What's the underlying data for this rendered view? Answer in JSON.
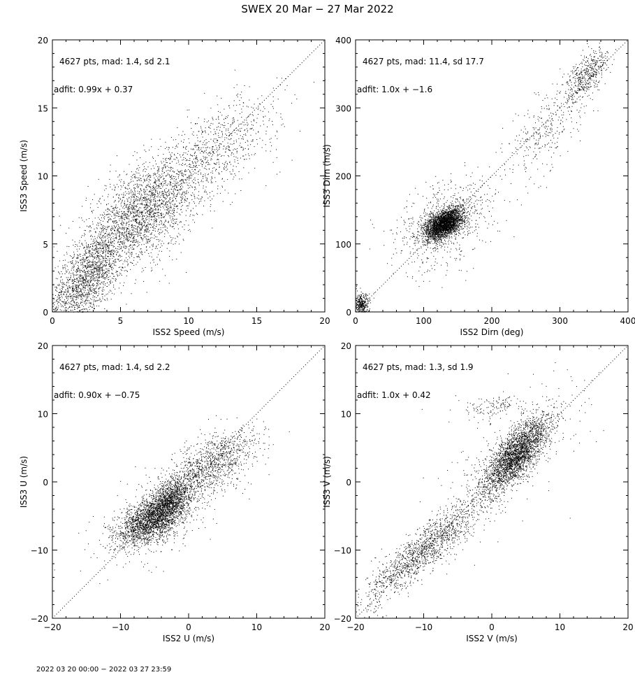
{
  "title": "SWEX 20 Mar − 27 Mar 2022",
  "footer": "2022 03 20 00:00 − 2022 03 27 23:59",
  "chart_data": [
    {
      "type": "scatter",
      "xlabel": "ISS2 Speed (m/s)",
      "ylabel": "ISS3 Speed (m/s)",
      "xlim": [
        0,
        20
      ],
      "ylim": [
        0,
        20
      ],
      "xticks": [
        0,
        5,
        10,
        15,
        20
      ],
      "yticks": [
        0,
        5,
        10,
        15,
        20
      ],
      "annotations": [
        "4627 pts, mad: 1.4, sd 2.1",
        "adfit: 0.99x + 0.37"
      ],
      "n_points": 4627,
      "fit": {
        "slope": 0.99,
        "intercept": 0.37
      },
      "reference_line": "1:1 dotted",
      "clusters": [
        {
          "cx": 2.5,
          "cy": 2.5,
          "sx": 1.4,
          "sy": 1.8,
          "rho": 0.6,
          "weight": 0.35
        },
        {
          "cx": 6.5,
          "cy": 7.2,
          "sx": 2.0,
          "sy": 2.0,
          "rho": 0.5,
          "weight": 0.45
        },
        {
          "cx": 11.5,
          "cy": 11.5,
          "sx": 2.6,
          "sy": 2.2,
          "rho": 0.7,
          "weight": 0.2
        }
      ],
      "grid": false
    },
    {
      "type": "scatter",
      "xlabel": "ISS2 Dirn (deg)",
      "ylabel": "ISS3 Dirn (m/s)",
      "xlim": [
        0,
        400
      ],
      "ylim": [
        0,
        400
      ],
      "xticks": [
        0,
        100,
        200,
        300,
        400
      ],
      "yticks": [
        0,
        100,
        200,
        300,
        400
      ],
      "annotations": [
        "4627 pts, mad: 11.4, sd 17.7",
        "adfit: 1.0x + −1.6"
      ],
      "n_points": 4627,
      "fit": {
        "slope": 1.0,
        "intercept": -1.6
      },
      "reference_line": "1:1 dotted",
      "clusters": [
        {
          "cx": 130,
          "cy": 130,
          "sx": 14,
          "sy": 12,
          "rho": 0.5,
          "weight": 0.62
        },
        {
          "cx": 130,
          "cy": 130,
          "sx": 40,
          "sy": 35,
          "rho": 0.4,
          "weight": 0.13
        },
        {
          "cx": 8,
          "cy": 10,
          "sx": 6,
          "sy": 8,
          "rho": 0.2,
          "weight": 0.08
        },
        {
          "cx": 340,
          "cy": 350,
          "sx": 15,
          "sy": 18,
          "rho": 0.6,
          "weight": 0.1
        },
        {
          "cx": 280,
          "cy": 270,
          "sx": 30,
          "sy": 35,
          "rho": 0.6,
          "weight": 0.07
        }
      ],
      "grid": false
    },
    {
      "type": "scatter",
      "xlabel": "ISS2 U (m/s)",
      "ylabel": "ISS3 U (m/s)",
      "xlim": [
        -20,
        20
      ],
      "ylim": [
        -20,
        20
      ],
      "xticks": [
        -20,
        -10,
        0,
        10,
        20
      ],
      "yticks": [
        -20,
        -10,
        0,
        10,
        20
      ],
      "annotations": [
        "4627 pts, mad: 1.4, sd 2.2",
        "adfit: 0.90x + −0.75"
      ],
      "n_points": 4627,
      "fit": {
        "slope": 0.9,
        "intercept": -0.75
      },
      "reference_line": "1:1 dotted",
      "clusters": [
        {
          "cx": -3,
          "cy": -3,
          "sx": 2.0,
          "sy": 2.0,
          "rho": 0.6,
          "weight": 0.35
        },
        {
          "cx": -6,
          "cy": -6,
          "sx": 2.5,
          "sy": 1.8,
          "rho": 0.5,
          "weight": 0.35
        },
        {
          "cx": 4,
          "cy": 3,
          "sx": 3.2,
          "sy": 2.5,
          "rho": 0.6,
          "weight": 0.2
        },
        {
          "cx": -2,
          "cy": -3,
          "sx": 5,
          "sy": 4.5,
          "rho": 0.7,
          "weight": 0.1
        }
      ],
      "grid": false
    },
    {
      "type": "scatter",
      "xlabel": "ISS2 V (m/s)",
      "ylabel": "ISS3 V (m/s)",
      "xlim": [
        -20,
        20
      ],
      "ylim": [
        -20,
        20
      ],
      "xticks": [
        -20,
        -10,
        0,
        10,
        20
      ],
      "yticks": [
        -20,
        -10,
        0,
        10,
        20
      ],
      "annotations": [
        "4627 pts, mad: 1.3, sd 1.9",
        "adfit: 1.0x + 0.42"
      ],
      "n_points": 4627,
      "fit": {
        "slope": 1.0,
        "intercept": 0.42
      },
      "reference_line": "1:1 dotted",
      "clusters": [
        {
          "cx": 3.5,
          "cy": 4,
          "sx": 2.4,
          "sy": 2.8,
          "rho": 0.75,
          "weight": 0.6
        },
        {
          "cx": -10,
          "cy": -10,
          "sx": 4.5,
          "sy": 4.0,
          "rho": 0.9,
          "weight": 0.32
        },
        {
          "cx": 0,
          "cy": 11,
          "sx": 2.5,
          "sy": 1.0,
          "rho": 0.0,
          "weight": 0.03
        },
        {
          "cx": 3,
          "cy": 3,
          "sx": 6,
          "sy": 6,
          "rho": 0.7,
          "weight": 0.05
        }
      ],
      "grid": false
    }
  ]
}
